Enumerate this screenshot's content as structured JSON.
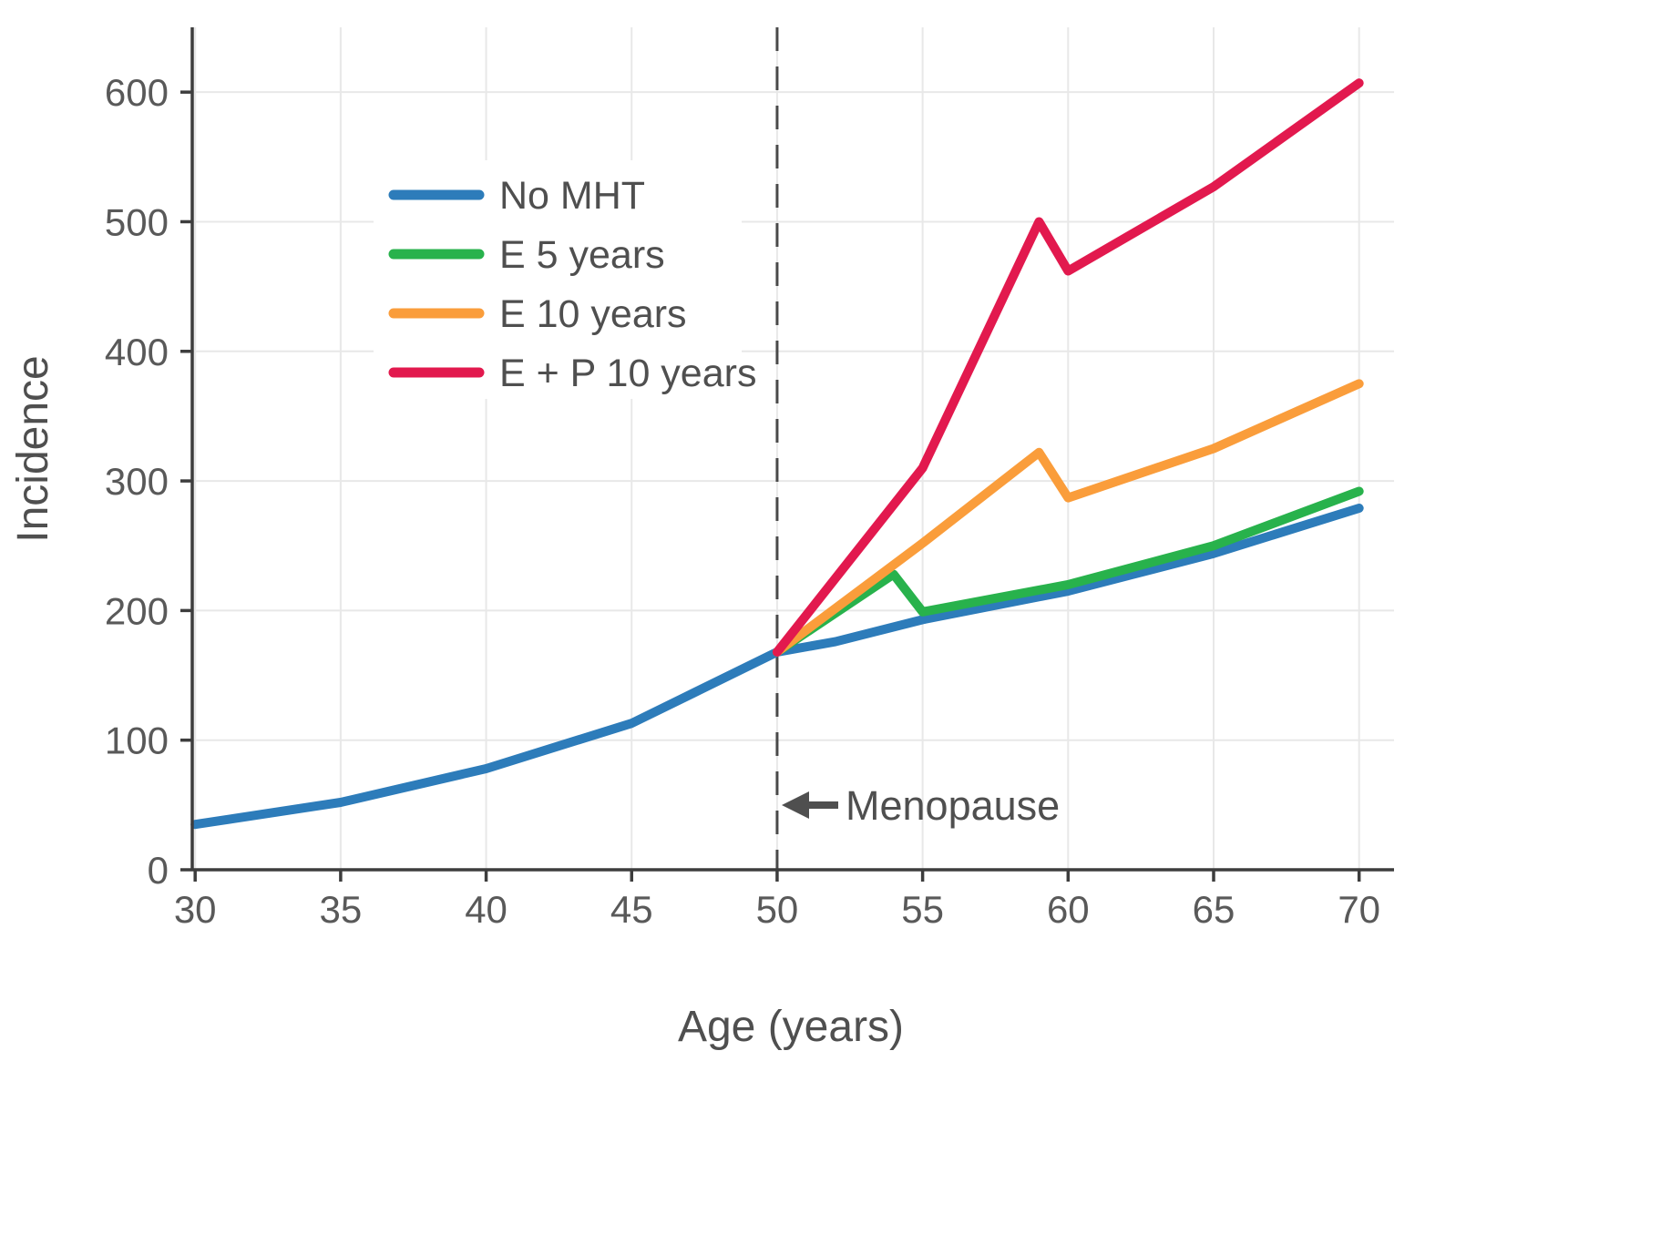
{
  "figure": {
    "background": "#ffffff"
  },
  "colors": {
    "axis": "#3d3d3d",
    "tick_text": "#595959",
    "grid": "#e8e8e8",
    "annotation": "#4f4f4f"
  },
  "chart_data": {
    "type": "line",
    "title": "",
    "xlabel": "Age (years)",
    "ylabel": "Incidence",
    "axes": {
      "xmin": 29.9,
      "xmax": 71.2,
      "ymin": 0,
      "ymax": 650,
      "grid": true,
      "xticks": [
        30,
        35,
        40,
        45,
        50,
        55,
        60,
        65,
        70
      ],
      "yticks": [
        0,
        100,
        200,
        300,
        400,
        500,
        600
      ]
    },
    "series": [
      {
        "name": "No MHT",
        "color": "#2d7cba",
        "x": [
          30,
          35,
          40,
          45,
          50,
          52,
          55,
          60,
          65,
          70
        ],
        "y": [
          35,
          52,
          78,
          113,
          168,
          176,
          193,
          215,
          244,
          279
        ]
      },
      {
        "name": "E 5 years",
        "color": "#28b24c",
        "x": [
          50,
          54,
          55,
          60,
          65,
          70
        ],
        "y": [
          168,
          228,
          199,
          220,
          250,
          292
        ]
      },
      {
        "name": "E 10 years",
        "color": "#fa9d3b",
        "x": [
          50,
          55,
          59,
          60,
          65,
          70
        ],
        "y": [
          168,
          252,
          322,
          287,
          325,
          375
        ]
      },
      {
        "name": "E + P 10 years",
        "color": "#e2194e",
        "x": [
          50,
          55,
          59,
          60,
          65,
          70
        ],
        "y": [
          168,
          310,
          500,
          462,
          527,
          607
        ]
      }
    ],
    "vline": {
      "x": 50,
      "style": "dashed",
      "color": "#4a4a4a"
    },
    "annotation": {
      "label": "Menopause",
      "arrow_points_to_x": 50,
      "y": 50
    },
    "legend": {
      "position": "upper-left-inside"
    }
  }
}
